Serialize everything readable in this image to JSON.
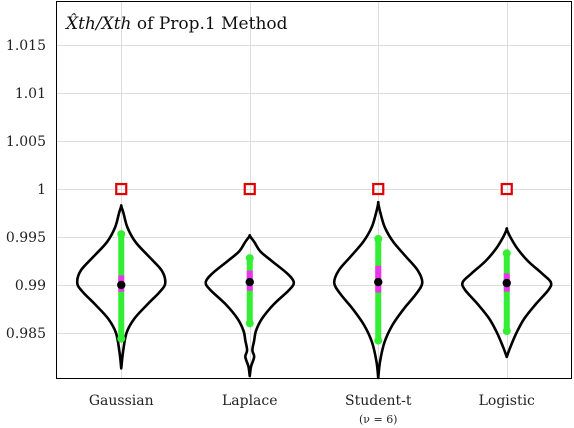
{
  "chart_data": {
    "type": "violin",
    "title": {
      "math": "X̂th/Xth",
      "text": " of Prop.1 Method"
    },
    "ylim": [
      0.9803,
      1.0195
    ],
    "yticks": [
      0.985,
      0.99,
      0.995,
      1,
      1.005,
      1.01,
      1.015
    ],
    "ytick_labels": [
      "0.985",
      "0.99",
      "0.995",
      "1",
      "1.005",
      "1.01",
      "1.015"
    ],
    "grid": true,
    "categories": [
      {
        "label": "Gaussian",
        "sublabel": ""
      },
      {
        "label": "Laplace",
        "sublabel": ""
      },
      {
        "label": "Student-t",
        "sublabel": "(ν = 6)"
      },
      {
        "label": "Logistic",
        "sublabel": ""
      }
    ],
    "reference_marker": {
      "value": 1.0,
      "color": "#e00000",
      "shape": "open-square"
    },
    "colors": {
      "whisker": "#33ee33",
      "iqr": "#ee33ee",
      "median": "#000000",
      "violin": "#000000"
    },
    "series": [
      {
        "category": "Gaussian",
        "median": 0.99,
        "q1": 0.9893,
        "q3": 0.991,
        "whisker_low": 0.9844,
        "whisker_high": 0.9953,
        "range": [
          0.9813,
          0.9982
        ],
        "profile": [
          [
            0.9813,
            0.0
          ],
          [
            0.983,
            0.04
          ],
          [
            0.985,
            0.12
          ],
          [
            0.9865,
            0.3
          ],
          [
            0.988,
            0.6
          ],
          [
            0.9893,
            0.88
          ],
          [
            0.9902,
            1.0
          ],
          [
            0.9915,
            0.92
          ],
          [
            0.993,
            0.62
          ],
          [
            0.9945,
            0.32
          ],
          [
            0.996,
            0.14
          ],
          [
            0.9975,
            0.05
          ],
          [
            0.9982,
            0.0
          ]
        ]
      },
      {
        "category": "Laplace",
        "median": 0.9903,
        "q1": 0.9894,
        "q3": 0.9915,
        "whisker_low": 0.986,
        "whisker_high": 0.9928,
        "range": [
          0.9805,
          0.9951
        ],
        "profile": [
          [
            0.9805,
            0.0
          ],
          [
            0.9815,
            0.03
          ],
          [
            0.9825,
            0.1
          ],
          [
            0.9832,
            0.06
          ],
          [
            0.9842,
            0.1
          ],
          [
            0.9852,
            0.14
          ],
          [
            0.9865,
            0.28
          ],
          [
            0.988,
            0.55
          ],
          [
            0.9895,
            0.9
          ],
          [
            0.9903,
            1.0
          ],
          [
            0.9912,
            0.85
          ],
          [
            0.9925,
            0.5
          ],
          [
            0.9935,
            0.24
          ],
          [
            0.9945,
            0.1
          ],
          [
            0.9951,
            0.0
          ]
        ]
      },
      {
        "category": "Student-t",
        "median": 0.9903,
        "q1": 0.9892,
        "q3": 0.992,
        "whisker_low": 0.9842,
        "whisker_high": 0.9948,
        "range": [
          0.9803,
          0.9985
        ],
        "profile": [
          [
            0.9803,
            0.0
          ],
          [
            0.982,
            0.04
          ],
          [
            0.984,
            0.14
          ],
          [
            0.9858,
            0.32
          ],
          [
            0.9875,
            0.58
          ],
          [
            0.989,
            0.85
          ],
          [
            0.9902,
            1.0
          ],
          [
            0.9915,
            0.9
          ],
          [
            0.993,
            0.62
          ],
          [
            0.9945,
            0.34
          ],
          [
            0.996,
            0.15
          ],
          [
            0.9975,
            0.05
          ],
          [
            0.9985,
            0.0
          ]
        ]
      },
      {
        "category": "Logistic",
        "median": 0.9902,
        "q1": 0.9893,
        "q3": 0.9912,
        "whisker_low": 0.9852,
        "whisker_high": 0.9933,
        "range": [
          0.9825,
          0.9958
        ],
        "profile": [
          [
            0.9825,
            0.0
          ],
          [
            0.9835,
            0.08
          ],
          [
            0.985,
            0.22
          ],
          [
            0.9865,
            0.4
          ],
          [
            0.988,
            0.66
          ],
          [
            0.9895,
            0.95
          ],
          [
            0.9903,
            1.0
          ],
          [
            0.9912,
            0.8
          ],
          [
            0.9925,
            0.48
          ],
          [
            0.9938,
            0.24
          ],
          [
            0.995,
            0.08
          ],
          [
            0.9958,
            0.0
          ]
        ]
      }
    ]
  }
}
